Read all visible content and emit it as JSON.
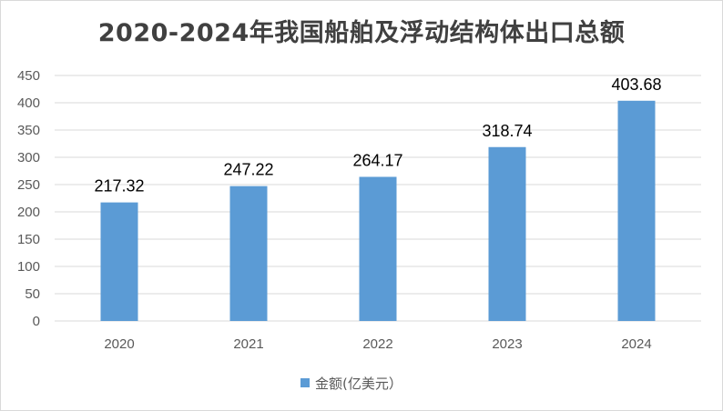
{
  "chart_data": {
    "type": "bar",
    "title": "2020-2024年我国船舶及浮动结构体出口总额",
    "categories": [
      "2020",
      "2021",
      "2022",
      "2023",
      "2024"
    ],
    "series": [
      {
        "name": "金额(亿美元）",
        "values": [
          217.32,
          247.22,
          264.17,
          318.74,
          403.68
        ],
        "data_labels": [
          "217.32",
          "247.22",
          "264.17",
          "318.74",
          "403.68"
        ]
      }
    ],
    "ylim": [
      0,
      450
    ],
    "yticks": [
      "0",
      "50",
      "100",
      "150",
      "200",
      "250",
      "300",
      "350",
      "400",
      "450"
    ],
    "grid": true,
    "legend": "bottom",
    "colors": {
      "bar": "#5b9bd5",
      "grid": "#d9d9d9",
      "axis_text": "#595959",
      "title": "#404040"
    }
  }
}
